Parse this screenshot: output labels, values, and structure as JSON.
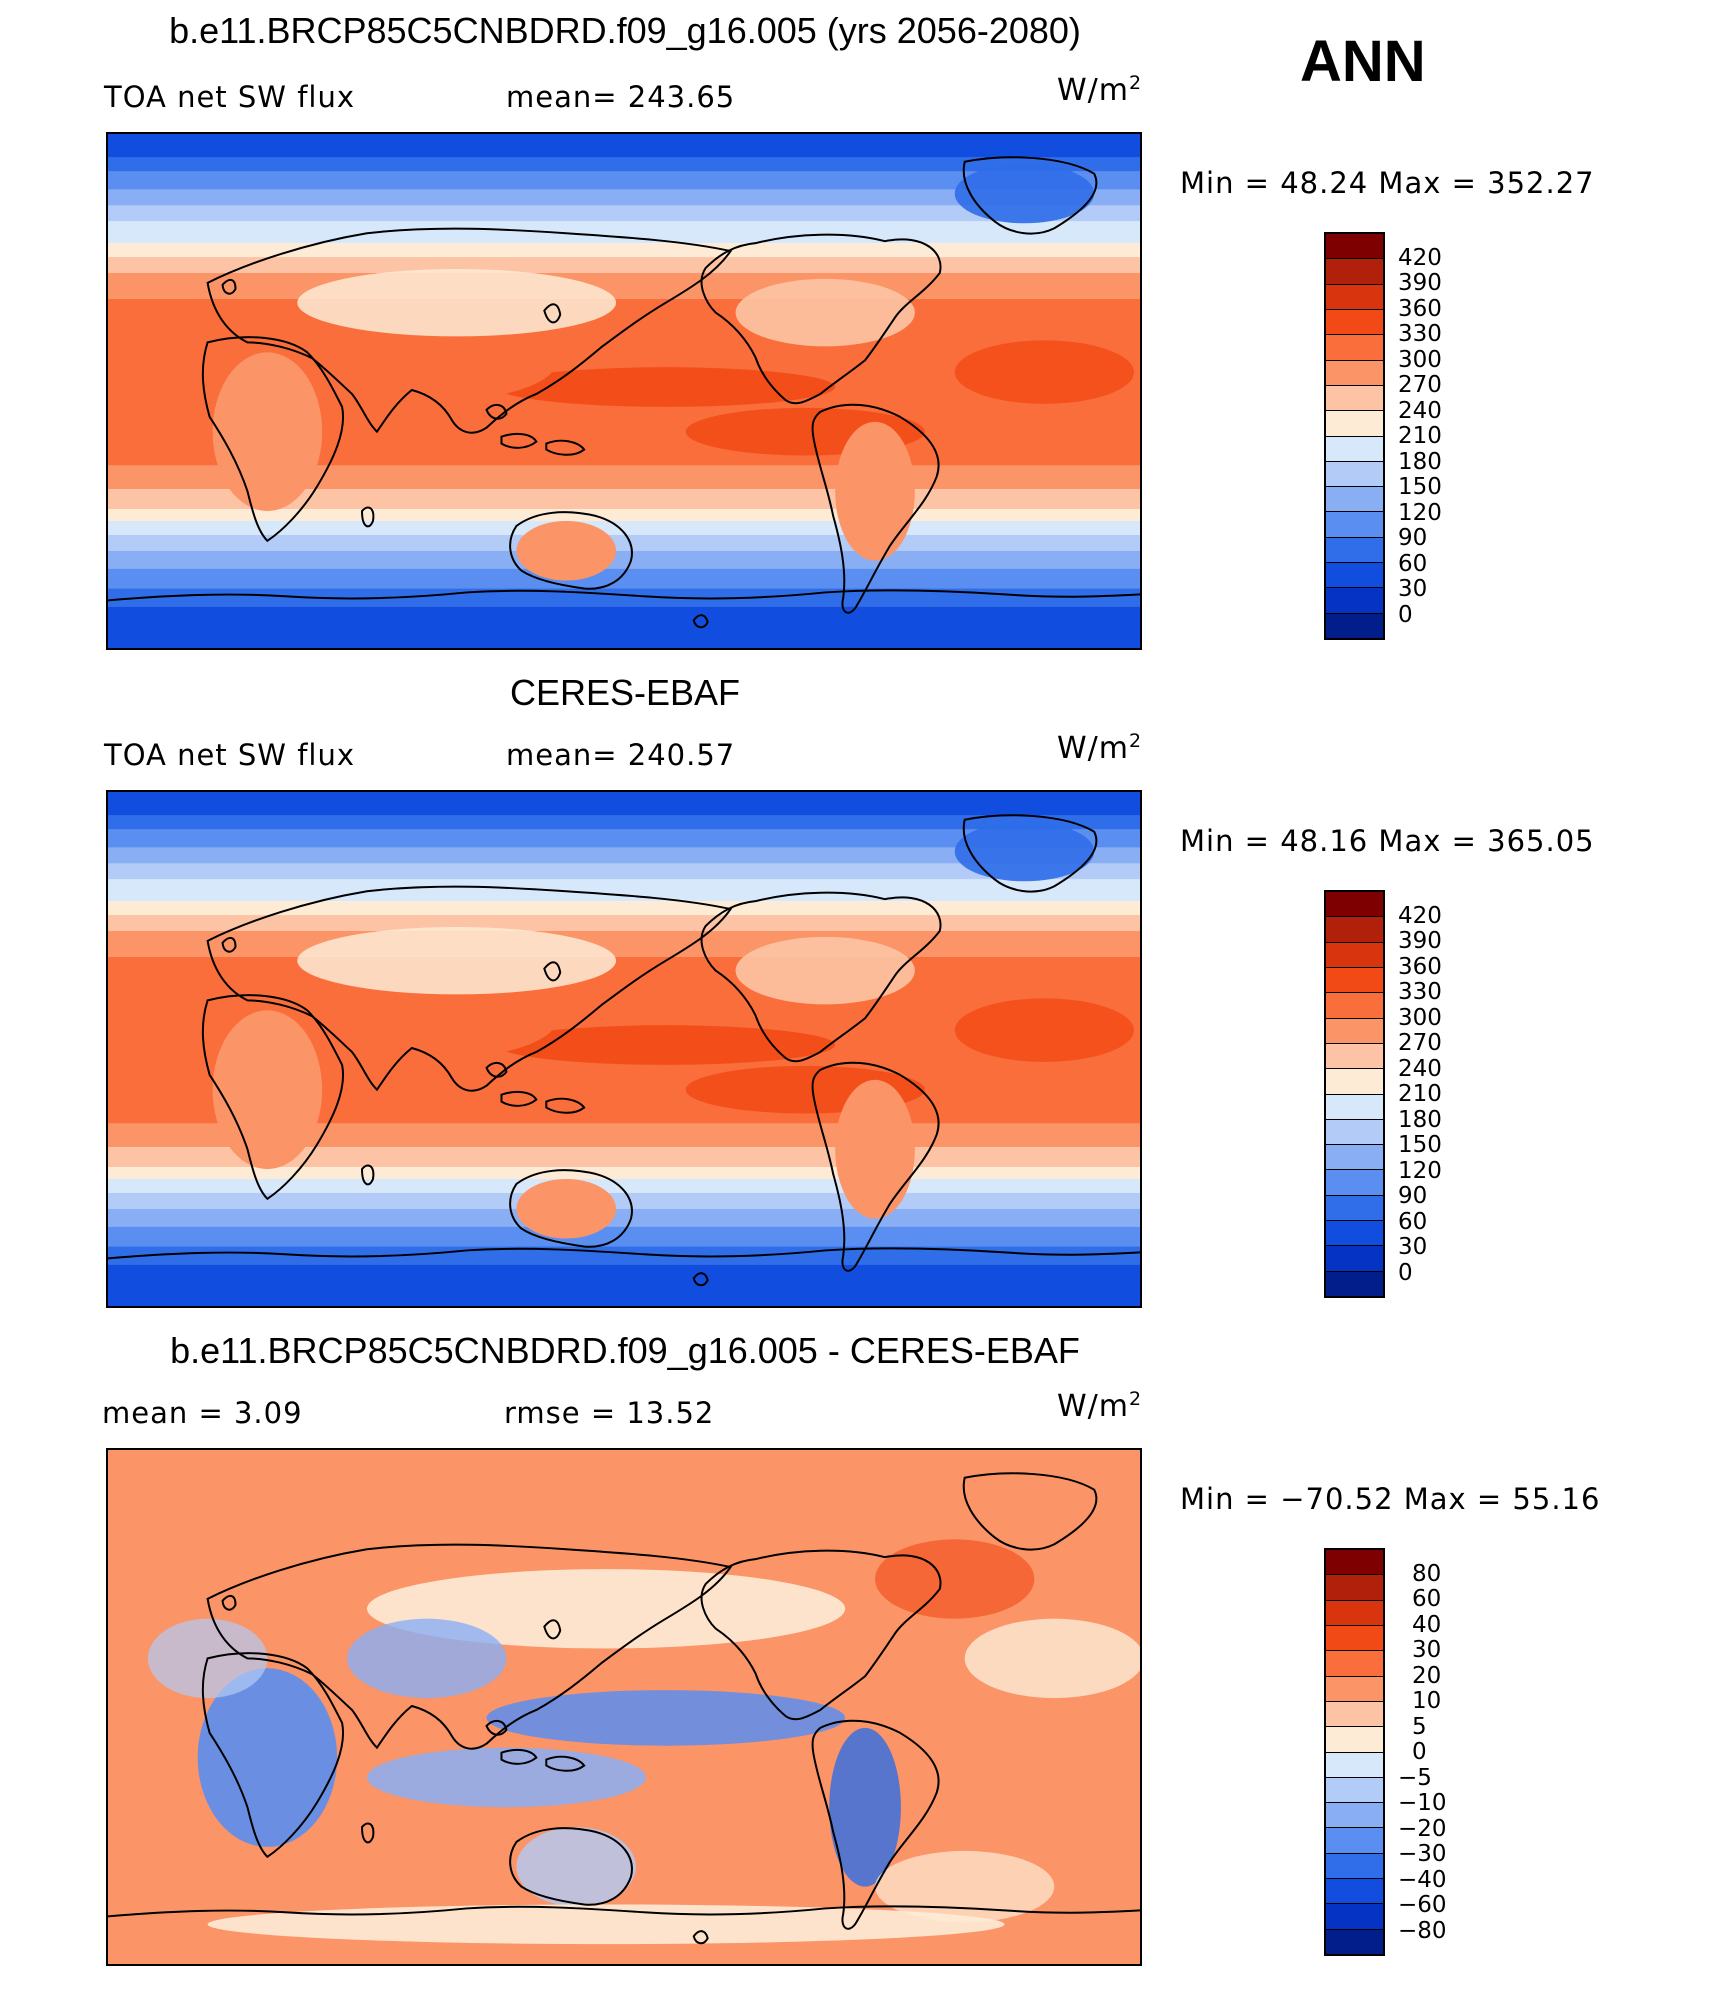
{
  "season_label": "ANN",
  "panels": [
    {
      "id": "model",
      "title": "b.e11.BRCP85C5CNBDRD.f09_g16.005 (yrs 2056-2080)",
      "variable": "TOA net SW flux",
      "stat1": "mean=  243.65",
      "stat2": "",
      "units_base": "W/m",
      "units_exp": "2",
      "minmax": "Min  =    48.24  Max  =  352.27",
      "kind": "abs",
      "colorbar": {
        "labels": [
          "420",
          "390",
          "360",
          "330",
          "300",
          "270",
          "240",
          "210",
          "180",
          "150",
          "120",
          "90",
          "60",
          "30",
          "0"
        ],
        "colors": [
          "#7f0000",
          "#b0200a",
          "#d8350e",
          "#f24a16",
          "#f96e3a",
          "#fb9466",
          "#fcc4a4",
          "#fdebd6",
          "#d8e8fb",
          "#b2cbf7",
          "#8aaef4",
          "#5a8ef0",
          "#2f6de9",
          "#114ee0",
          "#0534c4",
          "#021e8a"
        ]
      }
    },
    {
      "id": "obs",
      "title": "CERES-EBAF",
      "variable": "TOA net SW flux",
      "stat1": "mean=  240.57",
      "stat2": "",
      "units_base": "W/m",
      "units_exp": "2",
      "minmax": "Min  =    48.16  Max  =  365.05",
      "kind": "abs",
      "colorbar": {
        "labels": [
          "420",
          "390",
          "360",
          "330",
          "300",
          "270",
          "240",
          "210",
          "180",
          "150",
          "120",
          "90",
          "60",
          "30",
          "0"
        ],
        "colors": [
          "#7f0000",
          "#b0200a",
          "#d8350e",
          "#f24a16",
          "#f96e3a",
          "#fb9466",
          "#fcc4a4",
          "#fdebd6",
          "#d8e8fb",
          "#b2cbf7",
          "#8aaef4",
          "#5a8ef0",
          "#2f6de9",
          "#114ee0",
          "#0534c4",
          "#021e8a"
        ]
      }
    },
    {
      "id": "diff",
      "title": "b.e11.BRCP85C5CNBDRD.f09_g16.005 - CERES-EBAF",
      "variable": "mean  =      3.09",
      "stat1": "rmse  =     13.52",
      "stat2": "",
      "units_base": "W/m",
      "units_exp": "2",
      "minmax": "Min  = −70.52  Max  =     55.16",
      "kind": "diff",
      "colorbar": {
        "labels": [
          "80",
          "60",
          "40",
          "30",
          "20",
          "10",
          "5",
          "0",
          "−5",
          "−10",
          "−20",
          "−30",
          "−40",
          "−60",
          "−80"
        ],
        "colors": [
          "#7f0000",
          "#b0200a",
          "#d8350e",
          "#f24a16",
          "#f96e3a",
          "#fb9466",
          "#fcc4a4",
          "#fdebd6",
          "#d8e8fb",
          "#b2cbf7",
          "#8aaef4",
          "#5a8ef0",
          "#2f6de9",
          "#114ee0",
          "#0534c4",
          "#021e8a"
        ]
      }
    }
  ]
}
